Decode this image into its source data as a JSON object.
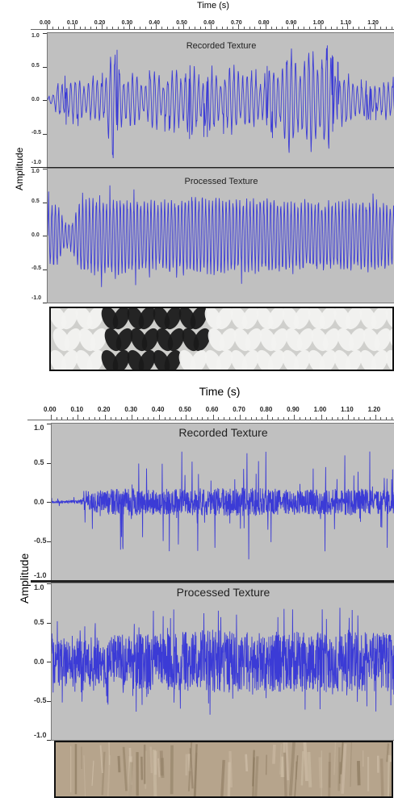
{
  "chart_data": [
    {
      "type": "line",
      "title": "Time (s)",
      "xlabel": "Time (s)",
      "ylabel": "Amplitude",
      "xticks": [
        "0.00",
        "0.10",
        "0.20",
        "0.30",
        "0.40",
        "0.50",
        "0.60",
        "0.70",
        "0.80",
        "0.90",
        "1.00",
        "1.10",
        "1.20"
      ],
      "xlim": [
        0.0,
        1.27
      ],
      "panels": [
        {
          "name": "Recorded Texture",
          "yticks": [
            "1.0",
            "0.5",
            "0.0",
            "-0.5",
            "-1.0"
          ],
          "ylim": [
            -1.0,
            1.0
          ],
          "style": "bursty-periodic",
          "envelope_x": [
            0.0,
            0.02,
            0.05,
            0.1,
            0.15,
            0.2,
            0.23,
            0.26,
            0.3,
            0.35,
            0.4,
            0.45,
            0.5,
            0.55,
            0.6,
            0.65,
            0.7,
            0.75,
            0.8,
            0.85,
            0.88,
            0.92,
            0.96,
            1.0,
            1.05,
            1.1,
            1.15,
            1.2,
            1.27
          ],
          "envelope_y": [
            0.05,
            0.1,
            0.35,
            0.4,
            0.35,
            0.4,
            0.95,
            0.7,
            0.45,
            0.4,
            0.5,
            0.45,
            0.6,
            0.55,
            0.55,
            0.5,
            0.6,
            0.45,
            0.5,
            0.65,
            0.85,
            0.75,
            0.8,
            1.0,
            0.6,
            0.45,
            0.3,
            0.3,
            0.35
          ]
        },
        {
          "name": "Processed Texture",
          "yticks": [
            "1.0",
            "0.5",
            "0.0",
            "-0.5",
            "-1.0"
          ],
          "ylim": [
            -1.0,
            1.0
          ],
          "style": "dense-periodic",
          "envelope_x": [
            0.0,
            0.04,
            0.06,
            0.09,
            0.12,
            0.2,
            0.4,
            0.5,
            0.6,
            0.7,
            0.8,
            0.9,
            1.0,
            1.1,
            1.2,
            1.27
          ],
          "envelope_y": [
            0.5,
            0.45,
            0.2,
            0.2,
            0.55,
            0.55,
            0.5,
            0.55,
            0.55,
            0.5,
            0.55,
            0.5,
            0.5,
            0.5,
            0.5,
            0.45
          ]
        }
      ]
    },
    {
      "type": "line",
      "title": "Time (s)",
      "xlabel": "Time (s)",
      "ylabel": "Amplitude",
      "xticks": [
        "0.00",
        "0.10",
        "0.20",
        "0.30",
        "0.40",
        "0.50",
        "0.60",
        "0.70",
        "0.80",
        "0.90",
        "1.00",
        "1.10",
        "1.20"
      ],
      "xlim": [
        0.0,
        1.27
      ],
      "panels": [
        {
          "name": "Recorded Texture",
          "yticks": [
            "1.0",
            "0.5",
            "0.0",
            "-0.5",
            "-1.0"
          ],
          "ylim": [
            -1.0,
            1.0
          ],
          "style": "spiky-noise",
          "envelope_x": [
            0.0,
            0.1,
            0.15,
            0.2,
            0.3,
            0.4,
            0.5,
            0.6,
            0.7,
            0.8,
            0.9,
            1.0,
            1.1,
            1.2,
            1.27
          ],
          "envelope_y": [
            0.05,
            0.08,
            0.5,
            0.65,
            0.7,
            0.65,
            0.7,
            0.7,
            0.75,
            0.7,
            0.6,
            0.65,
            0.7,
            0.65,
            0.6
          ]
        },
        {
          "name": "Processed Texture",
          "yticks": [
            "1.0",
            "0.5",
            "0.0",
            "-0.5",
            "-1.0"
          ],
          "ylim": [
            -1.0,
            1.0
          ],
          "style": "dense-noise",
          "envelope_x": [
            0.0,
            0.1,
            0.2,
            0.3,
            0.4,
            0.5,
            0.6,
            0.7,
            0.8,
            0.9,
            1.0,
            1.1,
            1.2,
            1.27
          ],
          "envelope_y": [
            0.55,
            0.6,
            0.6,
            0.65,
            0.65,
            0.7,
            0.75,
            0.7,
            0.7,
            0.7,
            0.7,
            0.7,
            0.7,
            0.7
          ]
        }
      ]
    }
  ],
  "colors": {
    "waveform": "#3b3bd6",
    "track_bg": "#c0c0c0",
    "axis_bg": "#ffffff"
  },
  "images": [
    {
      "name": "knit-fabric-photo",
      "palette": [
        "#f2f2f0",
        "#1a1a1a",
        "#cfcfcc"
      ]
    },
    {
      "name": "wood-grain-photo",
      "palette": [
        "#b6a48c",
        "#8e7c62",
        "#cdbda6"
      ]
    }
  ]
}
